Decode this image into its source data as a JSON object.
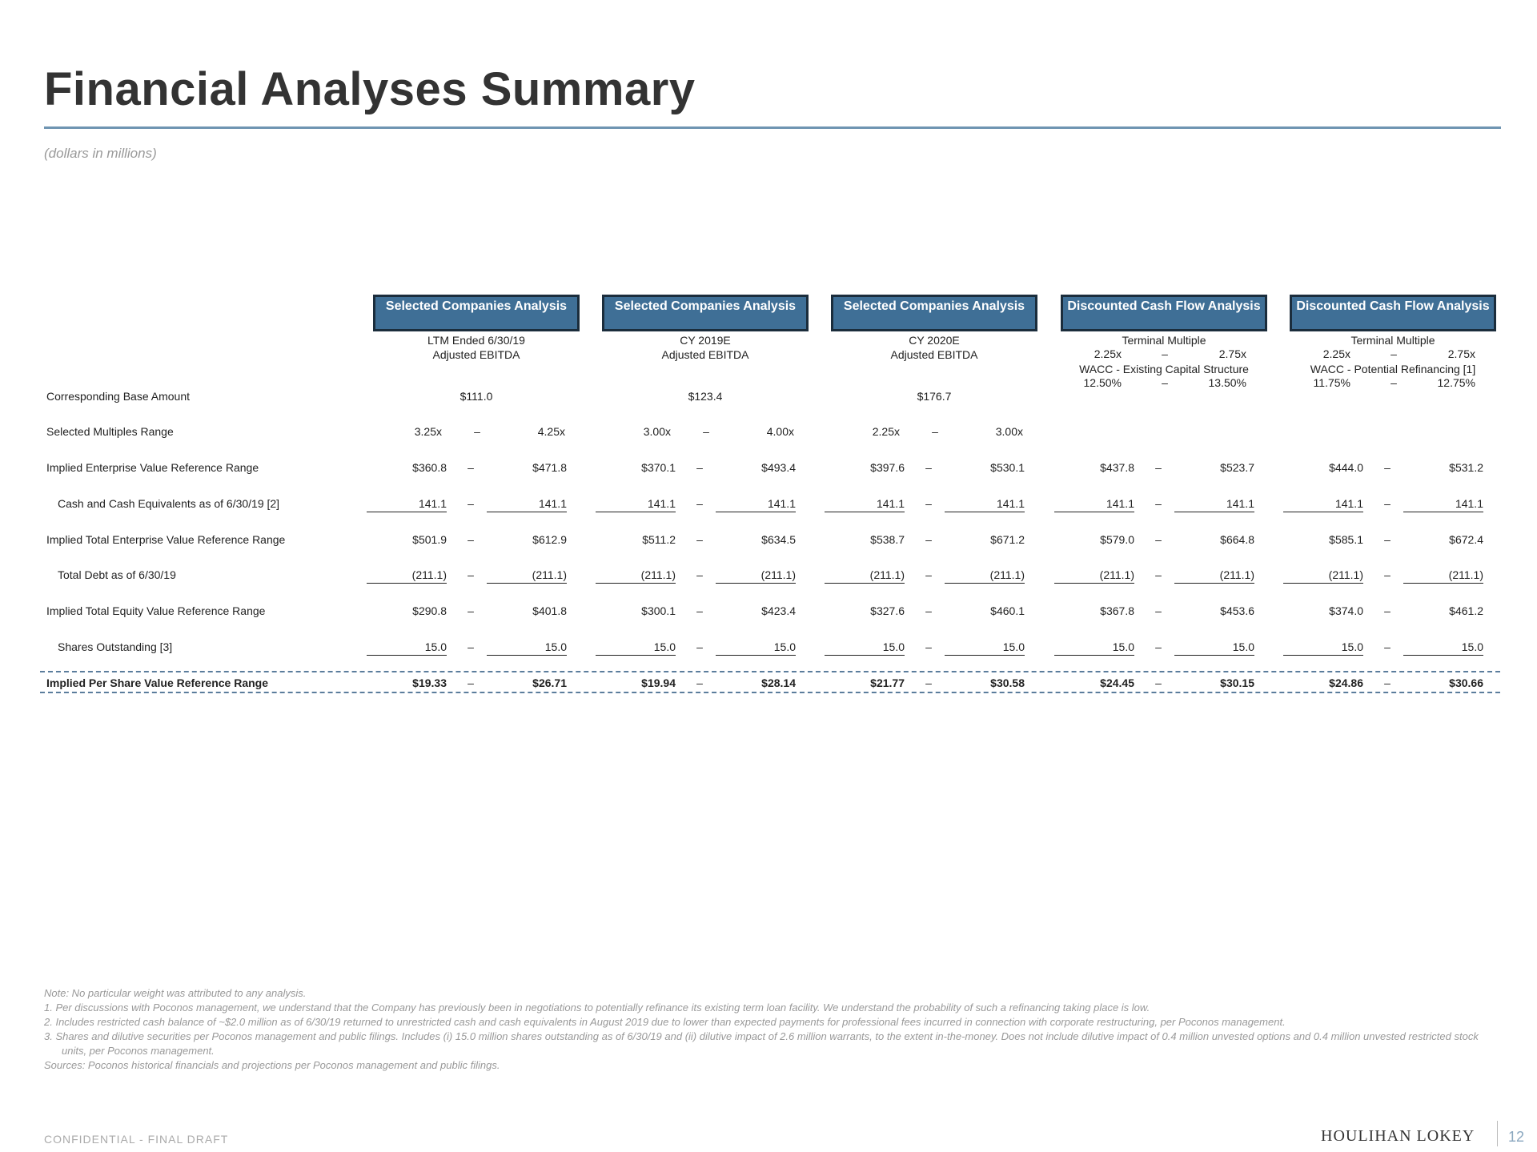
{
  "title": "Financial Analyses Summary",
  "subtitle": "(dollars in millions)",
  "columns": [
    {
      "header": "Selected Companies Analysis",
      "sub1": "LTM Ended 6/30/19",
      "sub2": "Adjusted EBITDA",
      "base": "$111.0",
      "multiples": [
        "3.25x",
        "4.25x"
      ],
      "ev": [
        "$360.8",
        "$471.8"
      ],
      "cash": [
        "141.1",
        "141.1"
      ],
      "tev": [
        "$501.9",
        "$612.9"
      ],
      "debt": [
        "(211.1)",
        "(211.1)"
      ],
      "equity": [
        "$290.8",
        "$401.8"
      ],
      "shares": [
        "15.0",
        "15.0"
      ],
      "per_share": [
        "$19.33",
        "$26.71"
      ]
    },
    {
      "header": "Selected Companies Analysis",
      "sub1": "CY 2019E",
      "sub2": "Adjusted EBITDA",
      "base": "$123.4",
      "multiples": [
        "3.00x",
        "4.00x"
      ],
      "ev": [
        "$370.1",
        "$493.4"
      ],
      "cash": [
        "141.1",
        "141.1"
      ],
      "tev": [
        "$511.2",
        "$634.5"
      ],
      "debt": [
        "(211.1)",
        "(211.1)"
      ],
      "equity": [
        "$300.1",
        "$423.4"
      ],
      "shares": [
        "15.0",
        "15.0"
      ],
      "per_share": [
        "$19.94",
        "$28.14"
      ]
    },
    {
      "header": "Selected Companies Analysis",
      "sub1": "CY 2020E",
      "sub2": "Adjusted EBITDA",
      "base": "$176.7",
      "multiples": [
        "2.25x",
        "3.00x"
      ],
      "ev": [
        "$397.6",
        "$530.1"
      ],
      "cash": [
        "141.1",
        "141.1"
      ],
      "tev": [
        "$538.7",
        "$671.2"
      ],
      "debt": [
        "(211.1)",
        "(211.1)"
      ],
      "equity": [
        "$327.6",
        "$460.1"
      ],
      "shares": [
        "15.0",
        "15.0"
      ],
      "per_share": [
        "$21.77",
        "$30.58"
      ]
    },
    {
      "header": "Discounted Cash Flow Analysis",
      "sub1": "Terminal Multiple",
      "tm": [
        "2.25x",
        "2.75x"
      ],
      "sub2": "WACC - Existing Capital Structure",
      "wacc": [
        "12.50%",
        "13.50%"
      ],
      "ev": [
        "$437.8",
        "$523.7"
      ],
      "cash": [
        "141.1",
        "141.1"
      ],
      "tev": [
        "$579.0",
        "$664.8"
      ],
      "debt": [
        "(211.1)",
        "(211.1)"
      ],
      "equity": [
        "$367.8",
        "$453.6"
      ],
      "shares": [
        "15.0",
        "15.0"
      ],
      "per_share": [
        "$24.45",
        "$30.15"
      ]
    },
    {
      "header": "Discounted Cash Flow Analysis",
      "sub1": "Terminal Multiple",
      "tm": [
        "2.25x",
        "2.75x"
      ],
      "sub2": "WACC - Potential Refinancing [1]",
      "wacc": [
        "11.75%",
        "12.75%"
      ],
      "ev": [
        "$444.0",
        "$531.2"
      ],
      "cash": [
        "141.1",
        "141.1"
      ],
      "tev": [
        "$585.1",
        "$672.4"
      ],
      "debt": [
        "(211.1)",
        "(211.1)"
      ],
      "equity": [
        "$374.0",
        "$461.2"
      ],
      "shares": [
        "15.0",
        "15.0"
      ],
      "per_share": [
        "$24.86",
        "$30.66"
      ]
    }
  ],
  "row_labels": {
    "base": "Corresponding Base Amount",
    "multiples": "Selected Multiples Range",
    "ev": "Implied Enterprise Value Reference Range",
    "cash": "Cash and Cash Equivalents as of 6/30/19 [2]",
    "tev": "Implied Total Enterprise Value Reference Range",
    "debt": "Total Debt as of 6/30/19",
    "equity": "Implied Total Equity Value Reference Range",
    "shares": "Shares Outstanding [3]",
    "per_share": "Implied Per Share Value Reference Range"
  },
  "range_separator": "–",
  "notes": {
    "note": "Note: No particular weight was attributed to any analysis.",
    "n1": "1. Per discussions with Poconos management, we understand that the Company has previously been in negotiations to potentially refinance its existing term loan facility. We understand the probability of such a refinancing taking place is low.",
    "n2": "2. Includes restricted cash balance of ~$2.0 million as of 6/30/19 returned to unrestricted cash and cash equivalents in August 2019 due to lower than expected payments for professional fees incurred in connection with corporate restructuring, per Poconos management.",
    "n3": "3. Shares and dilutive securities per Poconos management and public filings. Includes (i) 15.0 million shares outstanding as of 6/30/19 and (ii) dilutive impact of 2.6 million warrants, to the extent in-the-money. Does not include dilutive impact of 0.4 million unvested options and 0.4 million unvested restricted stock units, per Poconos management.",
    "sources": "Sources: Poconos historical financials and projections per Poconos management and public filings."
  },
  "footer": {
    "confidential": "CONFIDENTIAL - FINAL DRAFT",
    "logo": "HOULIHAN LOKEY",
    "page": "12"
  }
}
